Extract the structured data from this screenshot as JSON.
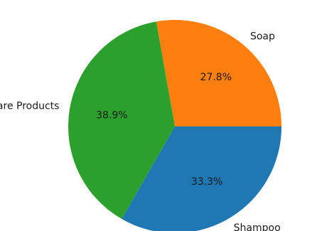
{
  "chart_data": {
    "type": "pie",
    "title": "",
    "slices": [
      {
        "label": "Soap",
        "value": 27.8,
        "pct_label": "27.8%",
        "color": "#ff7f0e"
      },
      {
        "label": "Skincare Products",
        "value": 38.9,
        "pct_label": "38.9%",
        "color": "#2ca02c"
      },
      {
        "label": "Shampoo",
        "value": 33.3,
        "pct_label": "33.3%",
        "color": "#1f77b4"
      }
    ]
  }
}
